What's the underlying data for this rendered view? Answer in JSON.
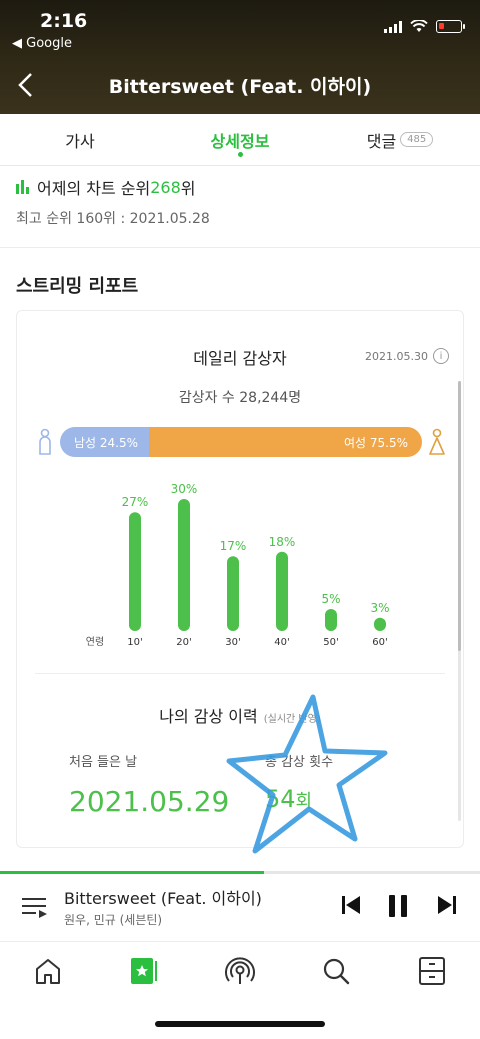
{
  "status": {
    "time": "2:16",
    "back_app": "◀ Google"
  },
  "header": {
    "title": "Bittersweet (Feat. 이하이)"
  },
  "tabs": [
    {
      "label": "가사",
      "active": false
    },
    {
      "label": "상세정보",
      "active": true
    },
    {
      "label": "댓글",
      "active": false,
      "badge": "485"
    }
  ],
  "rank": {
    "prefix": "어제의 차트 순위 ",
    "value": "268",
    "suffix": "위",
    "best": "최고 순위 160위 : 2021.05.28"
  },
  "report": {
    "section_title": "스트리밍 리포트",
    "card_title": "데일리 감상자",
    "date": "2021.05.30",
    "info_icon": "i",
    "listeners": "감상자 수 28,244명",
    "male_label": "남성 24.5%",
    "female_label": "여성 75.5%",
    "male_pct": 24.5,
    "female_pct": 75.5,
    "colors": {
      "male": "#9db8e8",
      "female": "#f0a546",
      "bar": "#4cc04a"
    }
  },
  "chart_data": {
    "type": "bar",
    "xlabel": "연령",
    "categories": [
      "10'",
      "20'",
      "30'",
      "40'",
      "50'",
      "60'"
    ],
    "values": [
      27,
      30,
      17,
      18,
      5,
      3
    ],
    "value_labels": [
      "27%",
      "30%",
      "17%",
      "18%",
      "5%",
      "3%"
    ],
    "ylim": [
      0,
      30
    ]
  },
  "history": {
    "title": "나의 감상 이력",
    "note": "(실시간 반영)",
    "first_label": "처음 들은 날",
    "first_value": "2021.05.29",
    "count_label": "총 감상 횟수",
    "count_value": "54",
    "count_unit": "회"
  },
  "player": {
    "title": "Bittersweet (Feat. 이하이)",
    "artist": "원우, 민규 (세븐틴)",
    "progress": 0.55
  },
  "nav": [
    "home-icon",
    "music-card-icon",
    "podcast-icon",
    "search-icon",
    "drawer-icon"
  ]
}
